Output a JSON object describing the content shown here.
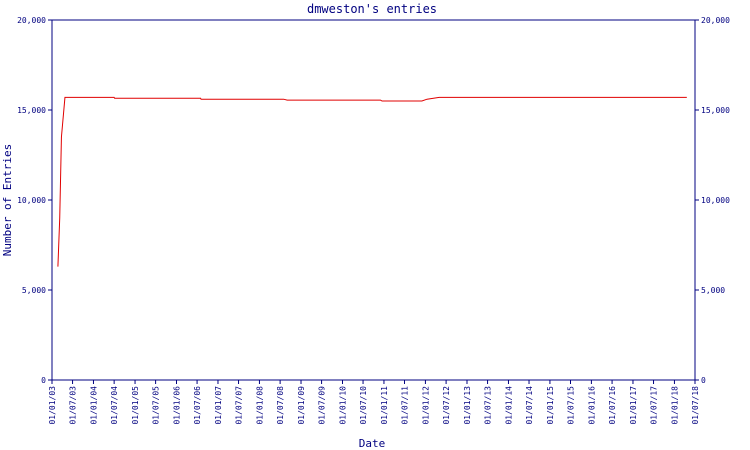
{
  "chart_data": {
    "type": "line",
    "title": "dmweston's entries",
    "xlabel": "Date",
    "ylabel": "Number of Entries",
    "x": [
      "2003-02-22",
      "2003-03-10",
      "2003-03-25",
      "2003-04-25",
      "2004-07-01",
      "2004-07-05",
      "2006-08-01",
      "2006-08-05",
      "2008-08-01",
      "2008-09-01",
      "2010-12-01",
      "2010-12-15",
      "2011-12-01",
      "2012-01-15",
      "2012-05-01",
      "2018-04-20"
    ],
    "series": [
      {
        "name": "entries",
        "color": "#e00000",
        "values": [
          6300,
          9000,
          13500,
          15700,
          15700,
          15650,
          15650,
          15600,
          15600,
          15550,
          15550,
          15500,
          15500,
          15600,
          15700,
          15700
        ]
      }
    ],
    "xlim": [
      "2003-01-01",
      "2018-07-01"
    ],
    "xticks": [
      {
        "value": "2003-01-01",
        "label": "01/01/03"
      },
      {
        "value": "2003-07-01",
        "label": "01/07/03"
      },
      {
        "value": "2004-01-01",
        "label": "01/01/04"
      },
      {
        "value": "2004-07-01",
        "label": "01/07/04"
      },
      {
        "value": "2005-01-01",
        "label": "01/01/05"
      },
      {
        "value": "2005-07-01",
        "label": "01/07/05"
      },
      {
        "value": "2006-01-01",
        "label": "01/01/06"
      },
      {
        "value": "2006-07-01",
        "label": "01/07/06"
      },
      {
        "value": "2007-01-01",
        "label": "01/01/07"
      },
      {
        "value": "2007-07-01",
        "label": "01/07/07"
      },
      {
        "value": "2008-01-01",
        "label": "01/01/08"
      },
      {
        "value": "2008-07-01",
        "label": "01/07/08"
      },
      {
        "value": "2009-01-01",
        "label": "01/01/09"
      },
      {
        "value": "2009-07-01",
        "label": "01/07/09"
      },
      {
        "value": "2010-01-01",
        "label": "01/01/10"
      },
      {
        "value": "2010-07-01",
        "label": "01/07/10"
      },
      {
        "value": "2011-01-01",
        "label": "01/01/11"
      },
      {
        "value": "2011-07-01",
        "label": "01/07/11"
      },
      {
        "value": "2012-01-01",
        "label": "01/01/12"
      },
      {
        "value": "2012-07-01",
        "label": "01/07/12"
      },
      {
        "value": "2013-01-01",
        "label": "01/01/13"
      },
      {
        "value": "2013-07-01",
        "label": "01/07/13"
      },
      {
        "value": "2014-01-01",
        "label": "01/01/14"
      },
      {
        "value": "2014-07-01",
        "label": "01/07/14"
      },
      {
        "value": "2015-01-01",
        "label": "01/01/15"
      },
      {
        "value": "2015-07-01",
        "label": "01/07/15"
      },
      {
        "value": "2016-01-01",
        "label": "01/01/16"
      },
      {
        "value": "2016-07-01",
        "label": "01/07/16"
      },
      {
        "value": "2017-01-01",
        "label": "01/01/17"
      },
      {
        "value": "2017-07-01",
        "label": "01/07/17"
      },
      {
        "value": "2018-01-01",
        "label": "01/01/18"
      },
      {
        "value": "2018-07-01",
        "label": "01/07/18"
      }
    ],
    "ylim": [
      0,
      20000
    ],
    "yticks": [
      0,
      {
        "value": 5000,
        "label": "5,000"
      },
      {
        "value": 10000,
        "label": "10,000"
      },
      {
        "value": 15000,
        "label": "15,000"
      },
      {
        "value": 20000,
        "label": "20,000"
      }
    ],
    "y2lim": [
      0,
      20000
    ],
    "y2ticks": [
      0,
      {
        "value": 5000,
        "label": "5,000"
      },
      {
        "value": 10000,
        "label": "10,000"
      },
      {
        "value": 15000,
        "label": "15,000"
      },
      {
        "value": 20000,
        "label": "20,000"
      }
    ],
    "axis_color": "#000080"
  }
}
